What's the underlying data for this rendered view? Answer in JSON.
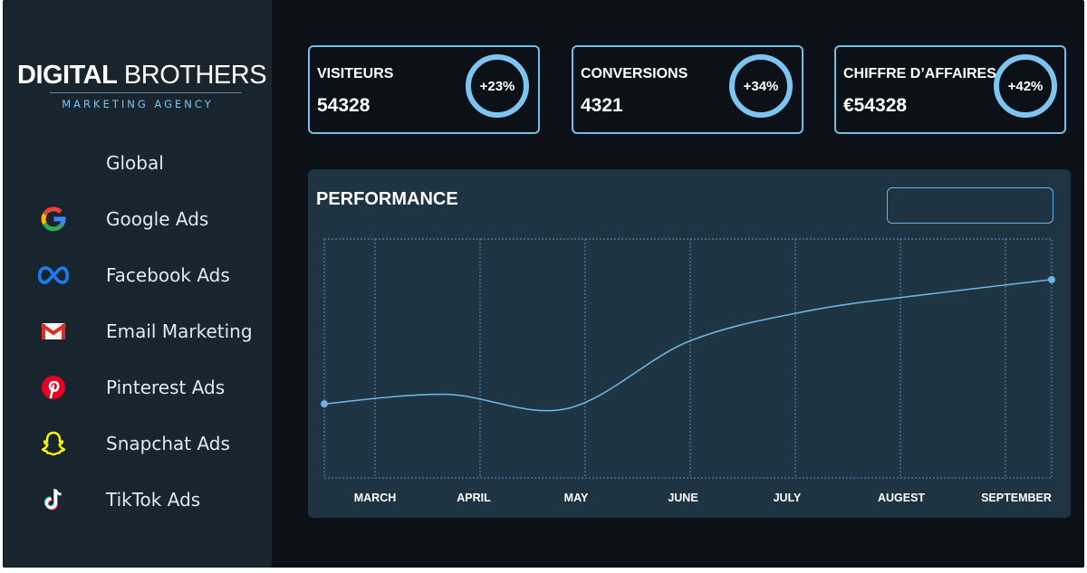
{
  "brand": {
    "name_bold": "DIGITAL",
    "name_light": "BROTHERS",
    "tagline": "MARKETING AGENCY"
  },
  "nav": {
    "items": [
      {
        "label": "Global",
        "icon": ""
      },
      {
        "label": "Google Ads",
        "icon": "google-icon"
      },
      {
        "label": "Facebook Ads",
        "icon": "meta-icon"
      },
      {
        "label": "Email Marketing",
        "icon": "gmail-icon"
      },
      {
        "label": "Pinterest Ads",
        "icon": "pinterest-icon"
      },
      {
        "label": "Snapchat Ads",
        "icon": "snapchat-icon"
      },
      {
        "label": "TikTok Ads",
        "icon": "tiktok-icon"
      }
    ]
  },
  "kpis": [
    {
      "title": "VISITEURS",
      "value": "54328",
      "change": "+23%"
    },
    {
      "title": "CONVERSIONS",
      "value": "4321",
      "change": "+34%"
    },
    {
      "title": "CHIFFRE D’AFFAIRES",
      "value": "€54328",
      "change": "+42%"
    }
  ],
  "performance": {
    "title": "PERFORMANCE",
    "select_value": ""
  },
  "chart_data": {
    "type": "line",
    "title": "PERFORMANCE",
    "categories": [
      "MARCH",
      "APRIL",
      "MAY",
      "JUNE",
      "JULY",
      "AUGEST",
      "SEPTEMBER"
    ],
    "x": [
      "MARCH",
      "APRIL",
      "MAY",
      "JUNE",
      "JULY",
      "AUGEST",
      "SEPTEMBER"
    ],
    "values": [
      31,
      35,
      29,
      57,
      70,
      77,
      83
    ],
    "ylim": [
      0,
      100
    ],
    "grid": true,
    "legend": "none"
  },
  "colors": {
    "accent": "#72bde9",
    "panel": "#1e3443",
    "sidebar": "#19252e",
    "background": "#0b1116"
  }
}
